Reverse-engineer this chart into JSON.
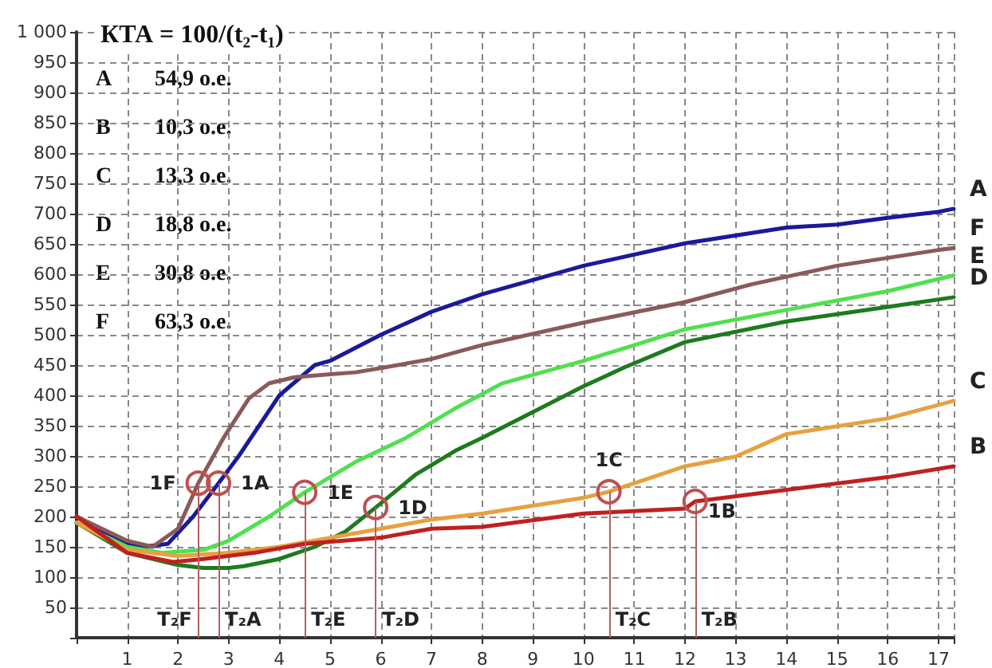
{
  "chart_data": {
    "type": "line",
    "title": "КТА = 100/(t₂-t₁)",
    "annotations": [
      "A 54,9 о.е.",
      "B 10,3 о.е.",
      "C 13,3 о.е.",
      "D 18,8 о.е.",
      "E 30,8 о.е.",
      "F 63,3 о.е.",
      {
        "text": "1F",
        "x": 2.4,
        "y": 255
      },
      {
        "text": "1A",
        "x": 2.8,
        "y": 255
      },
      {
        "text": "1E",
        "x": 4.5,
        "y": 240
      },
      {
        "text": "1D",
        "x": 5.9,
        "y": 215
      },
      {
        "text": "1C",
        "x": 10.5,
        "y": 241
      },
      {
        "text": "1B",
        "x": 12.2,
        "y": 225
      }
    ],
    "ref_lines": [
      {
        "axis": "x",
        "value": 2.4,
        "label": "T₂F",
        "color": "#b06060"
      },
      {
        "axis": "x",
        "value": 2.8,
        "label": "T₂A",
        "color": "#b06060"
      },
      {
        "axis": "x",
        "value": 4.5,
        "label": "T₂E",
        "color": "#b06060"
      },
      {
        "axis": "x",
        "value": 5.9,
        "label": "T₂D",
        "color": "#b06060"
      },
      {
        "axis": "x",
        "value": 10.5,
        "label": "T₂C",
        "color": "#b06060"
      },
      {
        "axis": "x",
        "value": 12.2,
        "label": "T₂B",
        "color": "#b06060"
      }
    ],
    "series": [
      {
        "name": "A",
        "color": "#1a1a9a",
        "x": [
          0,
          0.5,
          1,
          1.3,
          1.8,
          2.3,
          2.8,
          3.2,
          3.6,
          4,
          4.7,
          5,
          6,
          7,
          8,
          10,
          12,
          14,
          15,
          16,
          17,
          17.3
        ],
        "values": [
          200,
          175,
          155,
          150,
          155,
          200,
          255,
          300,
          350,
          400,
          450,
          457,
          500,
          538,
          567,
          614,
          651,
          677,
          682,
          693,
          703,
          708
        ]
      },
      {
        "name": "F",
        "color": "#8a5a5a",
        "x": [
          0,
          1,
          1.5,
          2,
          2.4,
          2.9,
          3.4,
          3.8,
          4.3,
          5,
          5.5,
          6,
          7,
          8,
          10,
          12,
          13.3,
          15,
          17,
          17.3
        ],
        "values": [
          200,
          160,
          150,
          180,
          255,
          330,
          395,
          420,
          430,
          435,
          438,
          445,
          460,
          483,
          520,
          554,
          583,
          614,
          640,
          643
        ]
      },
      {
        "name": "E",
        "color": "#50e050",
        "x": [
          0,
          1,
          1.7,
          2.5,
          3,
          3.8,
          4.5,
          5.5,
          6.5,
          7.5,
          8.4,
          10,
          12,
          14,
          16,
          17.3
        ],
        "values": [
          190,
          150,
          140,
          145,
          160,
          200,
          240,
          290,
          330,
          380,
          420,
          457,
          509,
          541,
          572,
          598
        ]
      },
      {
        "name": "D",
        "color": "#1e7a1e",
        "x": [
          0,
          1,
          2,
          2.5,
          3,
          3.3,
          4,
          4.7,
          5.3,
          5.9,
          6.7,
          7.5,
          8,
          10,
          10.8,
          12,
          14,
          16,
          17.3
        ],
        "values": [
          190,
          140,
          120,
          115,
          115,
          118,
          130,
          150,
          175,
          215,
          270,
          310,
          330,
          415,
          446,
          488,
          522,
          546,
          562
        ]
      },
      {
        "name": "C",
        "color": "#e8a040",
        "x": [
          0,
          1,
          2,
          3,
          4,
          5,
          6,
          7,
          8,
          10,
          10.5,
          12,
          13,
          14,
          16,
          17.3
        ],
        "values": [
          190,
          145,
          135,
          140,
          150,
          165,
          180,
          195,
          205,
          231,
          241,
          283,
          299,
          336,
          362,
          391
        ]
      },
      {
        "name": "B",
        "color": "#c02020",
        "x": [
          0,
          1,
          1.9,
          2.5,
          3.5,
          4.5,
          6,
          7,
          8,
          10,
          12,
          12.2,
          14,
          16,
          17.3
        ],
        "values": [
          200,
          140,
          125,
          130,
          140,
          155,
          165,
          180,
          183,
          205,
          213,
          225,
          244,
          265,
          283
        ]
      }
    ],
    "xlim": [
      0,
      17.3
    ],
    "xticks": [
      1,
      2,
      3,
      4,
      5,
      6,
      7,
      8,
      9,
      10,
      11,
      12,
      13,
      14,
      15,
      16,
      17
    ],
    "ylim": [
      0,
      1000
    ],
    "yticks": [
      50,
      100,
      150,
      200,
      250,
      300,
      350,
      400,
      450,
      500,
      550,
      600,
      650,
      700,
      750,
      800,
      850,
      900,
      950,
      {
        "value": 1000,
        "label": "1 000"
      }
    ],
    "grid": true,
    "legend": false,
    "line_style": "solid"
  }
}
